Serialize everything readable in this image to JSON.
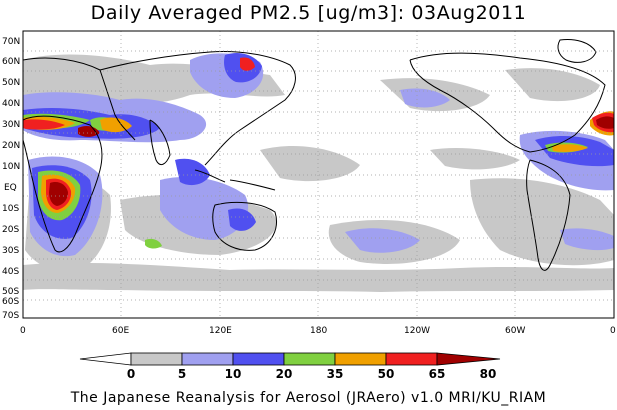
{
  "title": "Daily Averaged PM2.5 [ug/m3]: 03Aug2011",
  "footer": "The Japanese Reanalysis for Aerosol (JRAero) v1.0 MRI/KU_RIAM",
  "lat_ticks": [
    "70N",
    "60N",
    "50N",
    "40N",
    "30N",
    "20N",
    "10N",
    "EQ",
    "10S",
    "20S",
    "30S",
    "40S",
    "50S",
    "60S",
    "70S"
  ],
  "lon_ticks": [
    "0",
    "60E",
    "120E",
    "180",
    "120W",
    "60W",
    "0"
  ],
  "colorbar": {
    "levels": [
      "0",
      "5",
      "10",
      "20",
      "35",
      "50",
      "65",
      "80"
    ],
    "colors": [
      "#ffffff",
      "#c8c8c8",
      "#a0a0f0",
      "#5050f0",
      "#80d040",
      "#f0a000",
      "#f02020",
      "#a00000"
    ]
  },
  "colors": {
    "ocean": "#ffffff",
    "coast": "#000000",
    "grid": "#999999"
  }
}
